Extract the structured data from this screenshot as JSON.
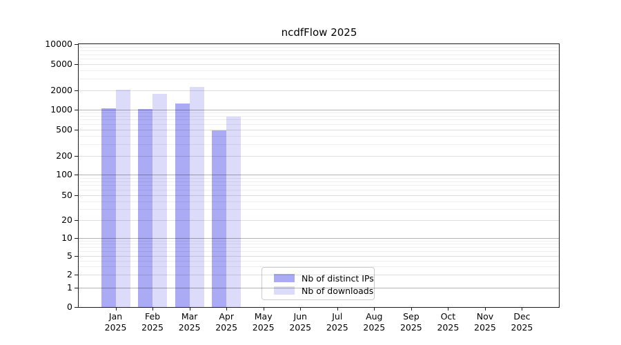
{
  "chart_data": {
    "type": "bar",
    "title": "ncdfFlow 2025",
    "y_scale": "symlog",
    "ylim": [
      0,
      10000
    ],
    "grid": true,
    "legend_position": "inside-bottom-center",
    "y_ticks": [
      0,
      1,
      2,
      5,
      10,
      20,
      50,
      100,
      200,
      500,
      1000,
      2000,
      5000,
      10000
    ],
    "categories": [
      [
        "Jan",
        "2025"
      ],
      [
        "Feb",
        "2025"
      ],
      [
        "Mar",
        "2025"
      ],
      [
        "Apr",
        "2025"
      ],
      [
        "May",
        "2025"
      ],
      [
        "Jun",
        "2025"
      ],
      [
        "Jul",
        "2025"
      ],
      [
        "Aug",
        "2025"
      ],
      [
        "Sep",
        "2025"
      ],
      [
        "Oct",
        "2025"
      ],
      [
        "Nov",
        "2025"
      ],
      [
        "Dec",
        "2025"
      ]
    ],
    "series": [
      {
        "name": "Nb of distinct IPs",
        "color": "#aaaaf5",
        "values": [
          1050,
          1020,
          1230,
          480,
          null,
          null,
          null,
          null,
          null,
          null,
          null,
          null
        ]
      },
      {
        "name": "Nb of downloads",
        "color": "#dcdcfa",
        "values": [
          2050,
          1750,
          2270,
          770,
          null,
          null,
          null,
          null,
          null,
          null,
          null,
          null
        ]
      }
    ]
  }
}
